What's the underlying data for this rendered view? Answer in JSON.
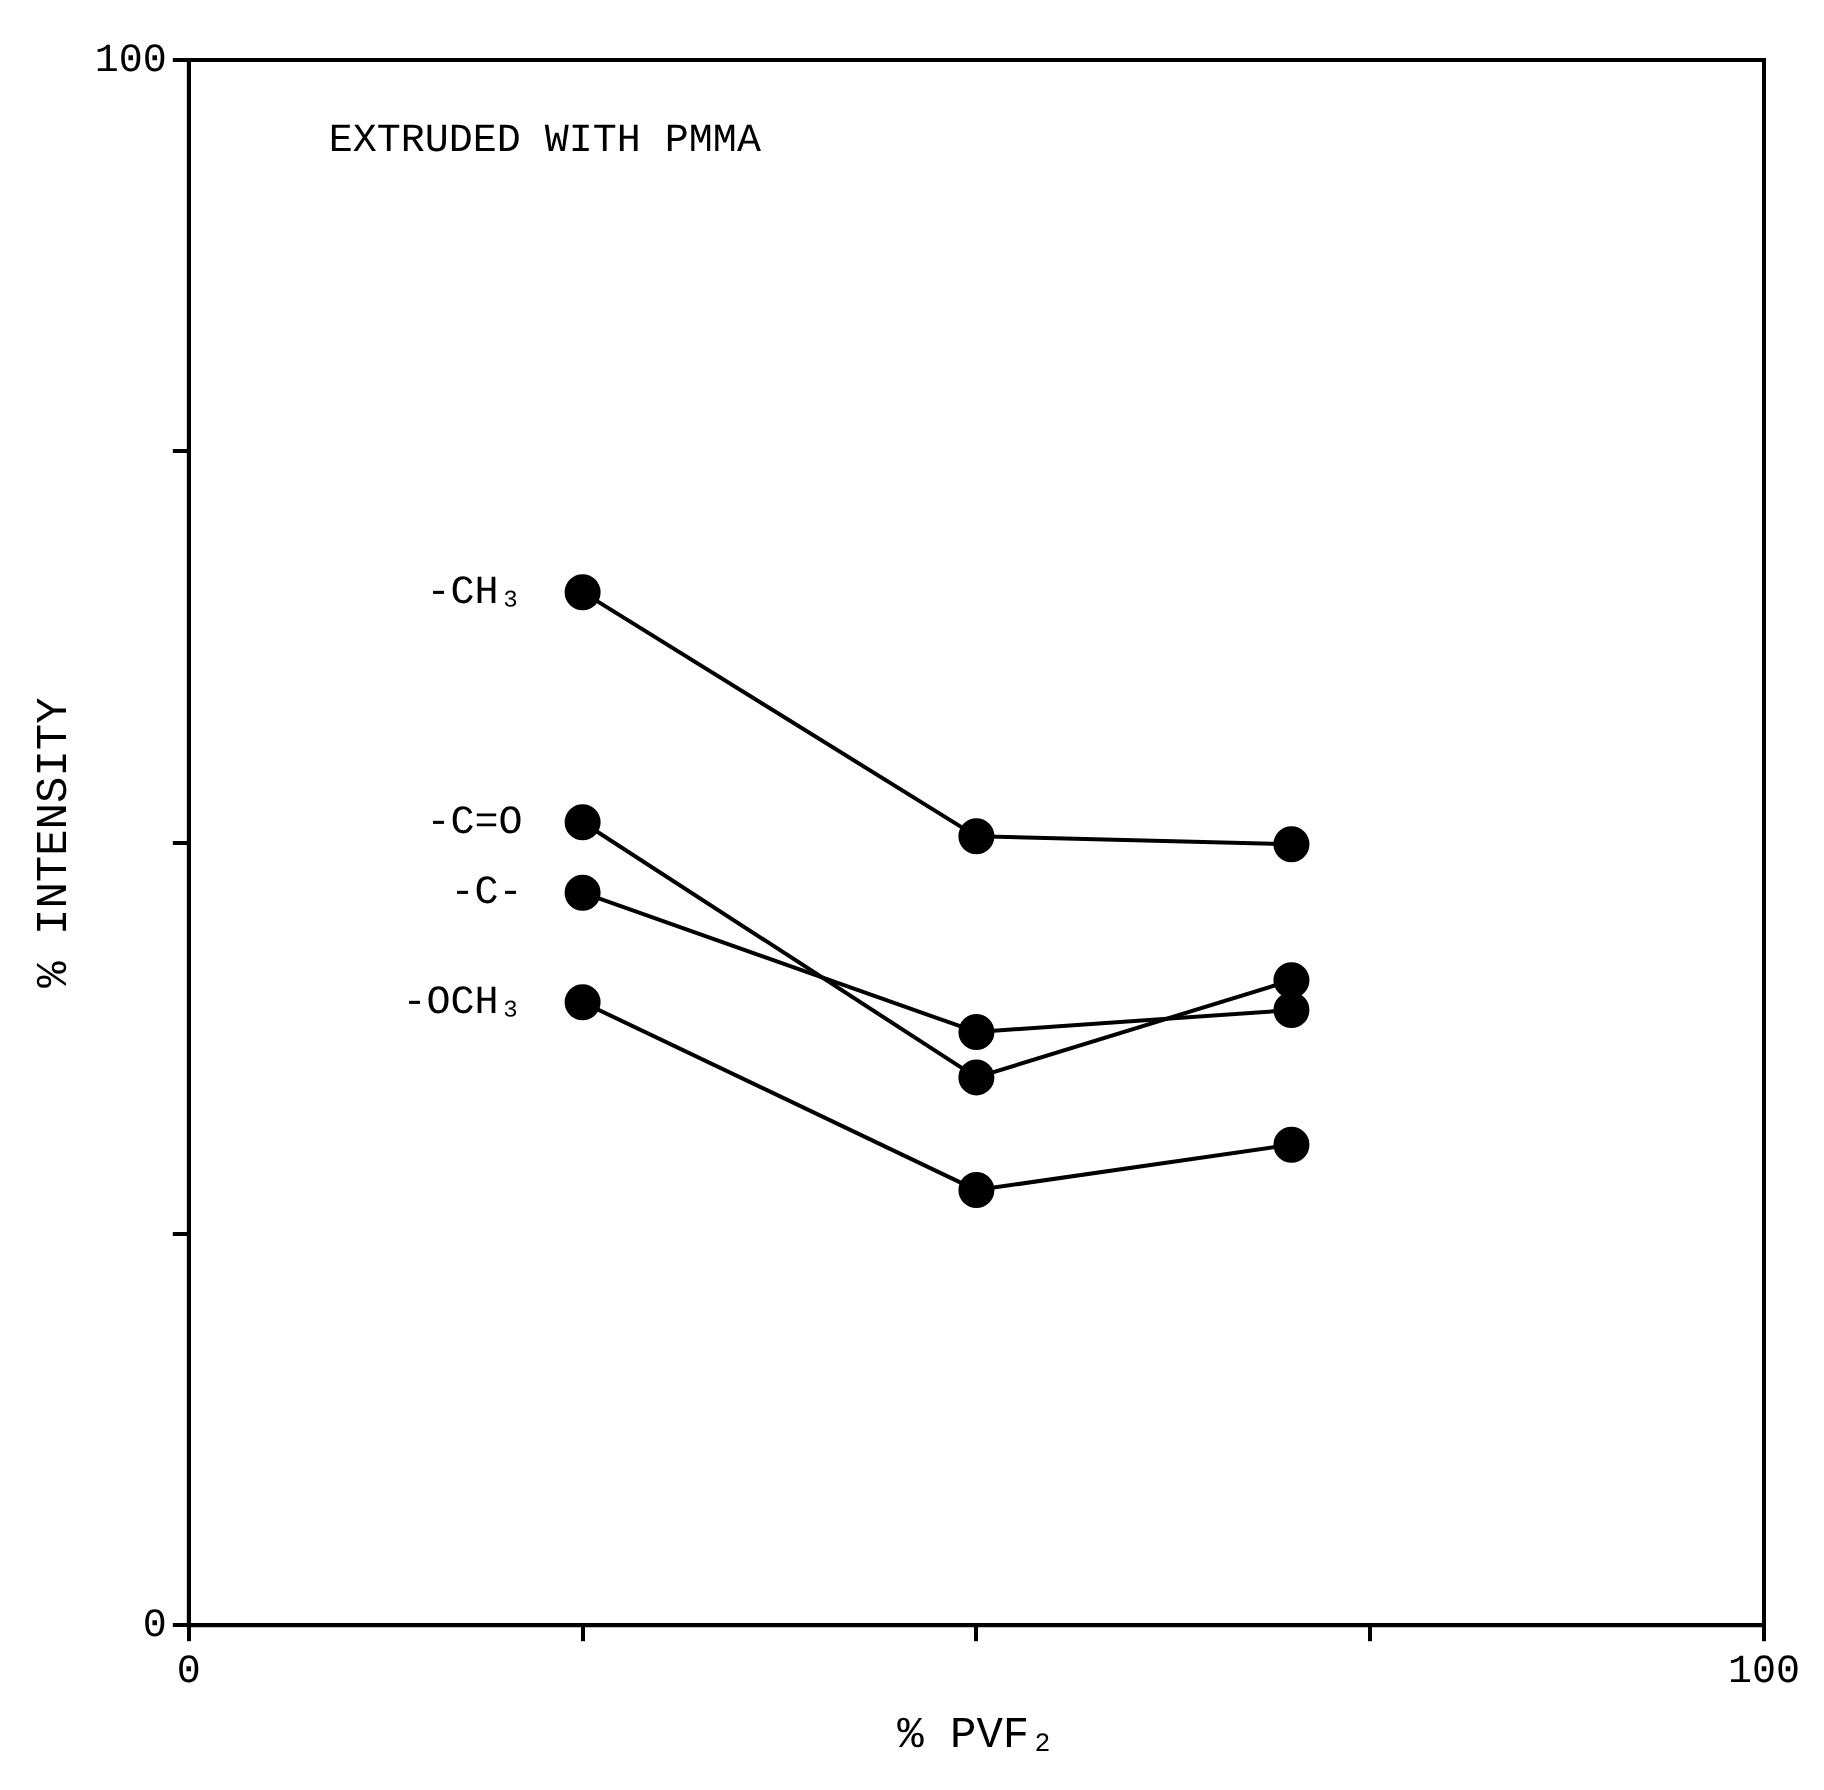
{
  "chart_data": {
    "type": "line",
    "title": "EXTRUDED WITH PMMA",
    "xlabel": "% PVF₂",
    "ylabel": "% INTENSITY",
    "x": [
      25,
      50,
      70
    ],
    "series": [
      {
        "name": "-CH₃",
        "color": "#000000",
        "values": [
          66.0,
          50.4,
          49.9
        ]
      },
      {
        "name": "-C=O",
        "color": "#000000",
        "values": [
          51.3,
          35.0,
          41.2
        ]
      },
      {
        "name": "-C-",
        "color": "#000000",
        "values": [
          46.8,
          37.9,
          39.3
        ]
      },
      {
        "name": "-OCH₃",
        "color": "#000000",
        "values": [
          39.8,
          27.8,
          30.7
        ]
      }
    ],
    "xlim": [
      0,
      100
    ],
    "xticks": [
      0,
      {
        "value": 25,
        "label": null
      },
      {
        "value": 50,
        "label": null
      },
      {
        "value": 75,
        "label": null
      },
      100
    ],
    "ylim": [
      0,
      100
    ],
    "yticks": [
      0,
      {
        "value": 25,
        "label": null
      },
      {
        "value": 50,
        "label": null
      },
      {
        "value": 75,
        "label": null
      },
      100
    ],
    "grid": false,
    "legend": false,
    "marker": "circle",
    "line_style": "solid"
  }
}
